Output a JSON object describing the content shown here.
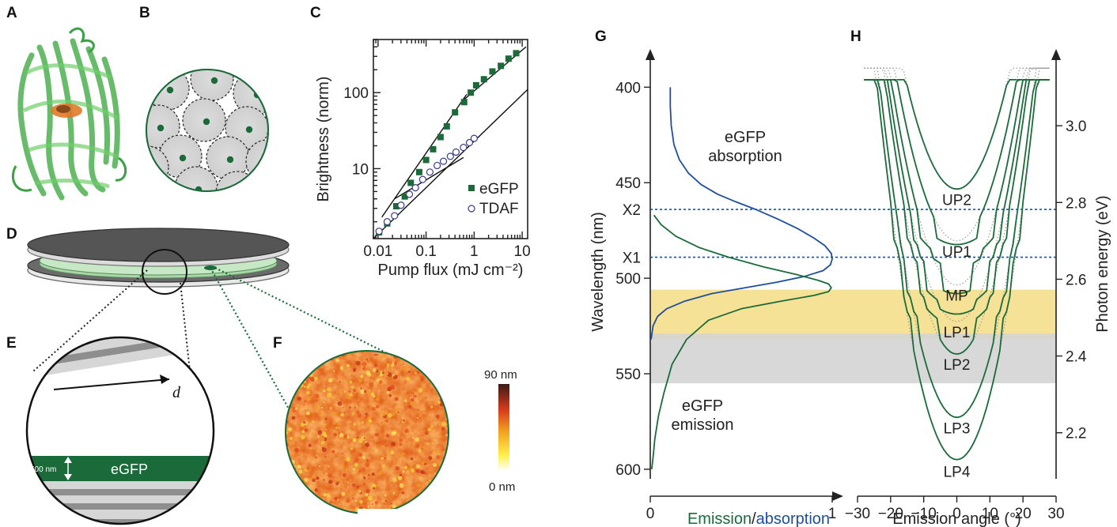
{
  "panels": {
    "A": "A",
    "B": "B",
    "C": "C",
    "D": "D",
    "E": "E",
    "F": "F",
    "G": "G",
    "H": "H"
  },
  "panel_e": {
    "layer_label": "eGFP",
    "thickness_label": "500 nm",
    "arrow_label": "d"
  },
  "panel_f": {
    "colorbar_max": "90 nm",
    "colorbar_min": "0 nm"
  },
  "colors": {
    "egfp_green": "#1b6b3a",
    "absorption_blue": "#1f4f9c",
    "yellow_band": "#f4df8c",
    "gray_band": "#d4d4d4"
  },
  "chart_data": [
    {
      "panel": "C",
      "type": "scatter",
      "xlabel": "Pump flux (mJ cm⁻²)",
      "ylabel": "Brightness (norm)",
      "xscale": "log",
      "yscale": "log",
      "xlim": [
        0.008,
        13
      ],
      "ylim": [
        1.2,
        500
      ],
      "xticks": [
        {
          "v": 0.01,
          "label": "0.01"
        },
        {
          "v": 0.1,
          "label": "0.1"
        },
        {
          "v": 1,
          "label": "1"
        },
        {
          "v": 10,
          "label": "10"
        }
      ],
      "yticks": [
        {
          "v": 10,
          "label": "10"
        },
        {
          "v": 100,
          "label": "100"
        }
      ],
      "legend": [
        {
          "name": "eGFP",
          "marker": "filled-square"
        },
        {
          "name": "TDAF",
          "marker": "open-circle"
        }
      ],
      "series": [
        {
          "name": "eGFP",
          "x": [
            0.0105,
            0.0155,
            0.024,
            0.036,
            0.048,
            0.072,
            0.1,
            0.14,
            0.2,
            0.27,
            0.4,
            0.62,
            0.85,
            1.1,
            1.6,
            2.4,
            3.6,
            5.2,
            7.5
          ],
          "y": [
            1.45,
            1.9,
            3.2,
            4.3,
            6.5,
            9,
            13,
            18,
            26,
            36,
            55,
            75,
            100,
            125,
            150,
            190,
            225,
            280,
            330
          ]
        },
        {
          "name": "TDAF",
          "x": [
            0.0105,
            0.0155,
            0.022,
            0.03,
            0.045,
            0.06,
            0.085,
            0.12,
            0.17,
            0.23,
            0.32,
            0.42,
            0.6,
            0.8,
            1.0
          ],
          "y": [
            1.5,
            2.0,
            2.4,
            3.3,
            4.6,
            5.6,
            7.2,
            9.0,
            11,
            12.5,
            14.5,
            16.5,
            19,
            22,
            25
          ]
        }
      ],
      "fits": [
        {
          "x": [
            0.012,
            0.7
          ],
          "y": [
            2.3,
            95
          ]
        },
        {
          "x": [
            0.022,
            0.6
          ],
          "y": [
            4.0,
            14
          ]
        },
        {
          "x": [
            0.6,
            12
          ],
          "y": [
            80,
            400
          ]
        },
        {
          "x": [
            0.008,
            13
          ],
          "y": [
            1.2,
            110
          ]
        }
      ]
    },
    {
      "panel": "G",
      "type": "line",
      "xlabel_parts": [
        {
          "text": "Emission",
          "color": "#1b6b3a"
        },
        {
          "text": "/",
          "color": "#222"
        },
        {
          "text": "absorption",
          "color": "#1f4f9c"
        }
      ],
      "ylabel": "Wavelength (nm)",
      "xlim": [
        0,
        1
      ],
      "ylim": [
        380,
        605
      ],
      "xticks": [
        {
          "v": 0,
          "label": "0"
        },
        {
          "v": 1,
          "label": "1"
        }
      ],
      "yticks": [
        {
          "v": 400,
          "label": "400"
        },
        {
          "v": 450,
          "label": "450"
        },
        {
          "v": 500,
          "label": "500"
        },
        {
          "v": 550,
          "label": "550"
        },
        {
          "v": 600,
          "label": "600"
        }
      ],
      "hlines": [
        {
          "label": "X2",
          "wavelength": 464
        },
        {
          "label": "X1",
          "wavelength": 489
        }
      ],
      "bands": [
        {
          "from": 506,
          "to": 532,
          "color": "#f4df8c"
        },
        {
          "from": 529,
          "to": 555,
          "color": "#d4d4d4"
        }
      ],
      "curve_labels": [
        {
          "lines": [
            "eGFP",
            "absorption"
          ],
          "color": "#1f4f9c"
        },
        {
          "lines": [
            "eGFP",
            "emission"
          ],
          "color": "#1b6b3a"
        }
      ],
      "series": [
        {
          "name": "eGFP absorption",
          "color": "#1f4f9c",
          "x": [
            0.11,
            0.11,
            0.115,
            0.13,
            0.16,
            0.21,
            0.28,
            0.37,
            0.47,
            0.58,
            0.7,
            0.81,
            0.9,
            0.96,
            0.995,
            1.0,
            0.99,
            0.95,
            0.85,
            0.7,
            0.52,
            0.34,
            0.19,
            0.09,
            0.04,
            0.015,
            0.005
          ],
          "y": [
            400,
            410,
            420,
            430,
            438,
            445,
            451,
            456,
            460,
            464,
            469,
            474,
            479,
            483,
            487,
            490,
            493,
            496,
            499,
            502,
            505,
            508,
            512,
            516,
            520,
            525,
            532
          ]
        },
        {
          "name": "eGFP emission",
          "color": "#1b6b3a",
          "x": [
            0.02,
            0.06,
            0.14,
            0.27,
            0.43,
            0.62,
            0.8,
            0.92,
            0.98,
            0.995,
            0.98,
            0.9,
            0.72,
            0.5,
            0.32,
            0.2,
            0.12,
            0.075,
            0.045,
            0.025,
            0.015,
            0.008
          ],
          "y": [
            467,
            472,
            478,
            484,
            489,
            494,
            498,
            501,
            503,
            505,
            507,
            509,
            512,
            516,
            522,
            532,
            545,
            560,
            572,
            584,
            594,
            600
          ]
        }
      ]
    },
    {
      "panel": "H",
      "type": "line",
      "xlabel": "Emission angle (°)",
      "ylabel": "Photon energy (eV)",
      "xlim": [
        -30,
        30
      ],
      "ylim": [
        2.08,
        3.2
      ],
      "xticks": [
        {
          "v": -30,
          "label": "−30"
        },
        {
          "v": -20,
          "label": "−20"
        },
        {
          "v": -10,
          "label": "−10"
        },
        {
          "v": 0,
          "label": "0"
        },
        {
          "v": 10,
          "label": "10"
        },
        {
          "v": 20,
          "label": "20"
        },
        {
          "v": 30,
          "label": "30"
        }
      ],
      "yticks": [
        {
          "v": 2.2,
          "label": "2.2"
        },
        {
          "v": 2.4,
          "label": "2.4"
        },
        {
          "v": 2.6,
          "label": "2.6"
        },
        {
          "v": 2.8,
          "label": "2.8"
        },
        {
          "v": 3.0,
          "label": "3.0"
        }
      ],
      "exciton_energies_eV": [
        2.67,
        2.535
      ],
      "branches": [
        {
          "label": "UP2",
          "e0": 2.835
        },
        {
          "label": "UP1",
          "e0": 2.7
        },
        {
          "label": "MP",
          "e0": 2.585
        },
        {
          "label": "LP1",
          "e0": 2.49
        },
        {
          "label": "LP2",
          "e0": 2.405
        },
        {
          "label": "LP3",
          "e0": 2.24
        },
        {
          "label": "LP4",
          "e0": 2.13
        }
      ]
    }
  ]
}
